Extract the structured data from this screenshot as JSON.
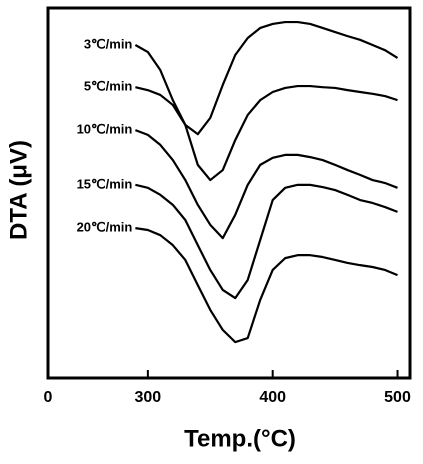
{
  "chart_data": {
    "type": "line",
    "x_label": "Temp.(°C)",
    "y_label": "DTA (μV)",
    "x": [
      290,
      300,
      310,
      320,
      330,
      340,
      350,
      360,
      370,
      380,
      390,
      400,
      410,
      420,
      430,
      440,
      450,
      460,
      470,
      480,
      490,
      500
    ],
    "xlim": [
      220,
      510
    ],
    "xticks": [
      {
        "value": 220,
        "label": "0"
      },
      300,
      400,
      500
    ],
    "ylim": [
      0,
      100
    ],
    "series": [
      {
        "name": "3℃/min",
        "color": "#000000",
        "values": [
          90,
          88.1,
          83.2,
          75.1,
          68.4,
          65.9,
          70.3,
          79.2,
          87.3,
          91.9,
          94.6,
          95.7,
          96.2,
          96.2,
          95.7,
          94.6,
          93.5,
          92.4,
          91.4,
          90,
          88.6,
          86.5
        ]
      },
      {
        "name": "5℃/min",
        "color": "#000000",
        "values": [
          78.6,
          77.8,
          76.5,
          73.8,
          68.4,
          57.6,
          53.5,
          56.2,
          64.3,
          71.1,
          75.1,
          77.3,
          78.4,
          78.9,
          78.9,
          78.6,
          78.4,
          77.8,
          77.3,
          76.8,
          76.2,
          75.1
        ]
      },
      {
        "name": "10℃/min",
        "color": "#000000",
        "values": [
          67.0,
          65.7,
          63.0,
          58.9,
          53.5,
          46.8,
          41.4,
          37.8,
          44.1,
          52.2,
          57.6,
          59.5,
          60.3,
          60.3,
          59.7,
          58.9,
          57.6,
          56.2,
          54.9,
          53.5,
          52.7,
          51.4
        ]
      },
      {
        "name": "15℃/min",
        "color": "#000000",
        "values": [
          52.2,
          51.4,
          49.5,
          46.8,
          42.7,
          35.9,
          29.2,
          23.8,
          21.6,
          26.5,
          37.3,
          48.1,
          51.4,
          52.2,
          52.2,
          51.6,
          50.8,
          49.5,
          48.1,
          47.3,
          46.2,
          44.9
        ]
      },
      {
        "name": "20℃/min",
        "color": "#000000",
        "values": [
          40.5,
          40.0,
          38.6,
          35.9,
          31.9,
          25.1,
          18.4,
          13.0,
          9.7,
          10.8,
          21.1,
          29.2,
          32.4,
          33.2,
          33.2,
          32.7,
          31.9,
          31.1,
          30.5,
          30.0,
          29.2,
          27.8
        ]
      }
    ]
  }
}
